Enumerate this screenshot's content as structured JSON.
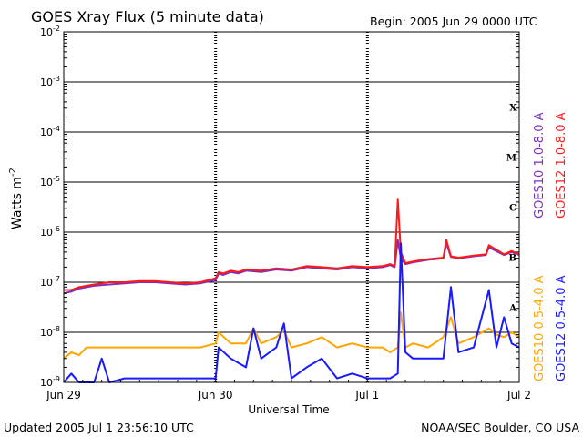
{
  "chart_data": {
    "type": "line",
    "title": "GOES Xray Flux (5 minute data)",
    "begin_label": "Begin:  2005 Jun 29 0000 UTC",
    "xlabel": "Universal Time",
    "ylabel_main": "Watts m",
    "ylabel_sup": "-2",
    "footer_left": "Updated 2005 Jul  1 23:56:10 UTC",
    "footer_right": "NOAA/SEC Boulder, CO USA",
    "log_scale": true,
    "grid": true,
    "x_range_days": [
      0,
      3
    ],
    "ylim": [
      1e-09,
      0.01
    ],
    "x_ticks": [
      {
        "day": 0,
        "label": "Jun 29"
      },
      {
        "day": 1,
        "label": "Jun 30"
      },
      {
        "day": 2,
        "label": "Jul 1"
      },
      {
        "day": 3,
        "label": "Jul 2"
      }
    ],
    "y_ticks": [
      {
        "exp": -2,
        "base": "10",
        "sup": "-2"
      },
      {
        "exp": -3,
        "base": "10",
        "sup": "-3"
      },
      {
        "exp": -4,
        "base": "10",
        "sup": "-4"
      },
      {
        "exp": -5,
        "base": "10",
        "sup": "-5"
      },
      {
        "exp": -6,
        "base": "10",
        "sup": "-6"
      },
      {
        "exp": -7,
        "base": "10",
        "sup": "-7"
      },
      {
        "exp": -8,
        "base": "10",
        "sup": "-8"
      },
      {
        "exp": -9,
        "base": "10",
        "sup": "-9"
      }
    ],
    "flare_classes": [
      {
        "label": "X",
        "exp": -3.5
      },
      {
        "label": "M",
        "exp": -4.5
      },
      {
        "label": "C",
        "exp": -5.5
      },
      {
        "label": "B",
        "exp": -6.5
      },
      {
        "label": "A",
        "exp": -7.5
      }
    ],
    "legend": [
      {
        "text": "GOES10 1.0-8.0 A",
        "color": "#7a2fbf"
      },
      {
        "text": "GOES12 1.0-8.0 A",
        "color": "#ff1a1a"
      },
      {
        "text": "GOES10 0.5-4.0 A",
        "color": "#ffa500"
      },
      {
        "text": "GOES12 0.5-4.0 A",
        "color": "#1a1aff"
      }
    ],
    "series": [
      {
        "name": "GOES10 1.0-8.0 A",
        "color": "#7a2fbf",
        "x": [
          0.0,
          0.05,
          0.1,
          0.2,
          0.3,
          0.4,
          0.5,
          0.6,
          0.7,
          0.8,
          0.9,
          1.0,
          1.02,
          1.05,
          1.1,
          1.15,
          1.2,
          1.3,
          1.4,
          1.5,
          1.6,
          1.7,
          1.8,
          1.9,
          2.0,
          2.1,
          2.15,
          2.18,
          2.2,
          2.22,
          2.25,
          2.3,
          2.4,
          2.5,
          2.52,
          2.55,
          2.6,
          2.7,
          2.78,
          2.8,
          2.9,
          2.95,
          3.0
        ],
        "y": [
          6e-08,
          6.5e-08,
          7.5e-08,
          8.5e-08,
          9e-08,
          9.5e-08,
          1e-07,
          1e-07,
          9.5e-08,
          9e-08,
          9.5e-08,
          1.1e-07,
          1.5e-07,
          1.4e-07,
          1.6e-07,
          1.5e-07,
          1.7e-07,
          1.6e-07,
          1.8e-07,
          1.7e-07,
          2e-07,
          1.9e-07,
          1.8e-07,
          2e-07,
          1.9e-07,
          2e-07,
          2.2e-07,
          2e-07,
          7e-07,
          3e-07,
          2.3e-07,
          2.5e-07,
          2.8e-07,
          3e-07,
          6e-07,
          3.2e-07,
          3e-07,
          3.3e-07,
          3.5e-07,
          5e-07,
          3.5e-07,
          4e-07,
          3.5e-07
        ]
      },
      {
        "name": "GOES12 1.0-8.0 A",
        "color": "#ff1a1a",
        "x": [
          0.0,
          0.05,
          0.1,
          0.2,
          0.3,
          0.4,
          0.5,
          0.6,
          0.7,
          0.8,
          0.9,
          1.0,
          1.02,
          1.05,
          1.1,
          1.15,
          1.2,
          1.3,
          1.4,
          1.5,
          1.6,
          1.7,
          1.8,
          1.9,
          2.0,
          2.1,
          2.15,
          2.18,
          2.2,
          2.22,
          2.25,
          2.3,
          2.4,
          2.5,
          2.52,
          2.55,
          2.6,
          2.7,
          2.78,
          2.8,
          2.9,
          2.95,
          3.0
        ],
        "y": [
          7e-08,
          7e-08,
          8e-08,
          9e-08,
          1e-07,
          1e-07,
          1.05e-07,
          1.05e-07,
          1e-07,
          9.5e-08,
          1e-07,
          1.2e-07,
          1.6e-07,
          1.5e-07,
          1.7e-07,
          1.6e-07,
          1.8e-07,
          1.7e-07,
          1.9e-07,
          1.8e-07,
          2.1e-07,
          2e-07,
          1.9e-07,
          2.1e-07,
          2e-07,
          2.1e-07,
          2.3e-07,
          2.1e-07,
          4.5e-06,
          4e-07,
          2.4e-07,
          2.6e-07,
          2.9e-07,
          3.1e-07,
          7e-07,
          3.3e-07,
          3.1e-07,
          3.4e-07,
          3.6e-07,
          5.5e-07,
          3.6e-07,
          4.2e-07,
          3.6e-07
        ]
      },
      {
        "name": "GOES10 0.5-4.0 A",
        "color": "#ffa500",
        "x": [
          0.0,
          0.05,
          0.1,
          0.15,
          0.2,
          0.25,
          0.3,
          0.4,
          0.5,
          0.6,
          0.7,
          0.8,
          0.9,
          1.0,
          1.02,
          1.1,
          1.2,
          1.25,
          1.3,
          1.4,
          1.45,
          1.5,
          1.6,
          1.7,
          1.8,
          1.9,
          2.0,
          2.1,
          2.15,
          2.2,
          2.22,
          2.25,
          2.3,
          2.4,
          2.5,
          2.55,
          2.6,
          2.7,
          2.8,
          2.85,
          2.9,
          2.95,
          3.0
        ],
        "y": [
          3e-09,
          4e-09,
          3.5e-09,
          5e-09,
          5e-09,
          5e-09,
          5e-09,
          5e-09,
          5e-09,
          5e-09,
          5e-09,
          5e-09,
          5e-09,
          6e-09,
          1e-08,
          6e-09,
          6e-09,
          1.2e-08,
          6e-09,
          8e-09,
          1.1e-08,
          5e-09,
          6e-09,
          8e-09,
          5e-09,
          6e-09,
          5e-09,
          5e-09,
          4e-09,
          5e-09,
          2.5e-08,
          5e-09,
          6e-09,
          5e-09,
          8e-09,
          2e-08,
          6e-09,
          8e-09,
          1.2e-08,
          9e-09,
          8e-09,
          1e-08,
          8e-09
        ]
      },
      {
        "name": "GOES12 0.5-4.0 A",
        "color": "#1a1aff",
        "x": [
          0.0,
          0.05,
          0.1,
          0.15,
          0.2,
          0.25,
          0.3,
          0.4,
          0.5,
          0.6,
          0.7,
          0.8,
          0.9,
          1.0,
          1.02,
          1.1,
          1.2,
          1.25,
          1.3,
          1.4,
          1.45,
          1.5,
          1.6,
          1.7,
          1.8,
          1.9,
          2.0,
          2.1,
          2.15,
          2.2,
          2.22,
          2.25,
          2.3,
          2.4,
          2.5,
          2.55,
          2.6,
          2.7,
          2.8,
          2.85,
          2.9,
          2.95,
          3.0
        ],
        "y": [
          1e-09,
          1.5e-09,
          1e-09,
          1e-09,
          1e-09,
          3e-09,
          1e-09,
          1.2e-09,
          1.2e-09,
          1.2e-09,
          1.2e-09,
          1.2e-09,
          1.2e-09,
          1.2e-09,
          5e-09,
          3e-09,
          2e-09,
          1.2e-08,
          3e-09,
          5e-09,
          1.5e-08,
          1.2e-09,
          2e-09,
          3e-09,
          1.2e-09,
          1.5e-09,
          1.2e-09,
          1.2e-09,
          1.2e-09,
          1.5e-09,
          6e-07,
          4e-09,
          3e-09,
          3e-09,
          3e-09,
          8e-08,
          4e-09,
          5e-09,
          7e-08,
          5e-09,
          2e-08,
          6e-09,
          5e-09
        ]
      }
    ]
  }
}
